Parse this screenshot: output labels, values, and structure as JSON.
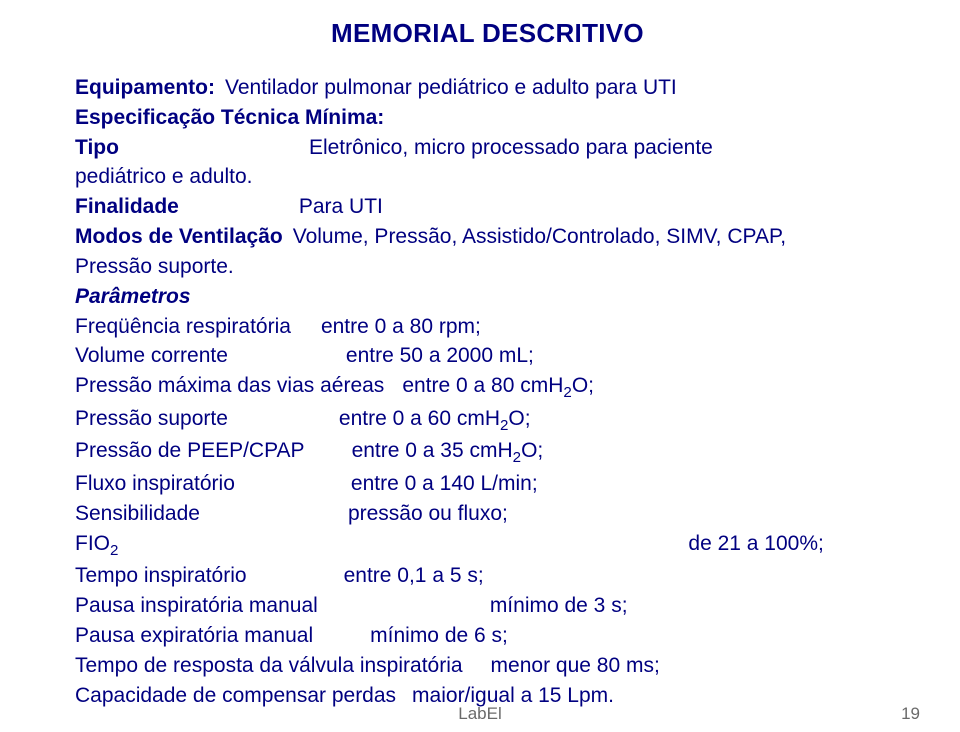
{
  "title": "MEMORIAL DESCRITIVO",
  "equipamento": {
    "label": "Equipamento:",
    "value": "Ventilador pulmonar pediátrico e adulto para UTI"
  },
  "especificacao": "Especificação Técnica Mínima:",
  "tipo": {
    "label": "Tipo",
    "value": "Eletrônico, micro processado para paciente"
  },
  "pediatrico": "pediátrico e adulto.",
  "finalidade": {
    "label": "Finalidade",
    "value": "Para UTI"
  },
  "modos": {
    "label": "Modos de Ventilação",
    "value": "Volume, Pressão, Assistido/Controlado, SIMV, CPAP,"
  },
  "pressao_suporte_top": "Pressão suporte.",
  "parametros_hdr": "Parâmetros",
  "freq": {
    "label": "Freqüência respiratória",
    "value": "entre 0 a 80 rpm;"
  },
  "vol": {
    "label": "Volume corrente",
    "value": "entre 50 a 2000 mL;"
  },
  "pmax": {
    "label": "Pressão máxima das vias aéreas",
    "value_pre": "entre 0 a 80 cmH",
    "value_post": "O;"
  },
  "psup": {
    "label": "Pressão suporte",
    "value_pre": "entre 0 a 60 cmH",
    "value_post": "O;"
  },
  "peep": {
    "label": "Pressão de PEEP/CPAP",
    "value_pre": "entre 0 a 35 cmH",
    "value_post": "O;"
  },
  "fluxo": {
    "label": "Fluxo inspiratório",
    "value": "entre 0 a 140 L/min;"
  },
  "sens": {
    "label": "Sensibilidade",
    "value": "pressão ou fluxo;"
  },
  "fio2": {
    "label_pre": "FIO",
    "value": "de 21 a 100%;"
  },
  "tinsp": {
    "label": "Tempo inspiratório",
    "value": "entre 0,1 a 5 s;"
  },
  "pausa_insp": {
    "label": "Pausa inspiratória manual",
    "value": "mínimo de 3 s;"
  },
  "pausa_exp": {
    "label": "Pausa expiratória manual",
    "value": "mínimo de 6 s;"
  },
  "tresp": {
    "label": "Tempo de resposta da válvula inspiratória",
    "value": "menor que 80 ms;"
  },
  "cap": {
    "label": "Capacidade de compensar perdas",
    "value": "maior/igual a 15 Lpm."
  },
  "sub2": "2",
  "footer_label": "LabEl",
  "footer_page": "19"
}
